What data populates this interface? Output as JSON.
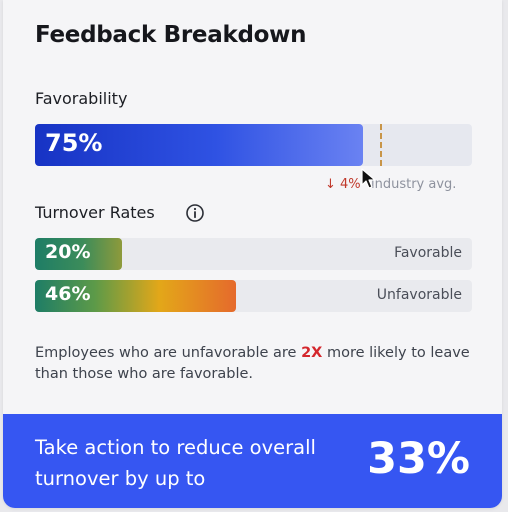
{
  "card": {
    "title": "Feedback Breakdown",
    "favorability": {
      "label": "Favorability",
      "value_text": "75%",
      "value_fraction": 0.75,
      "industry_delta": "↓ 4%",
      "industry_label": "industry avg.",
      "industry_avg_fraction": 0.79
    },
    "turnover": {
      "label": "Turnover Rates",
      "info_icon": "info-icon",
      "rows": [
        {
          "value_text": "20%",
          "fraction": 0.2,
          "tag": "Favorable"
        },
        {
          "value_text": "46%",
          "fraction": 0.46,
          "tag": "Unfavorable"
        }
      ]
    },
    "note": {
      "before": "Employees who are unfavorable are ",
      "highlight": "2X",
      "after": " more likely to leave than those who are favorable."
    },
    "banner": {
      "text": "Take action to reduce overall turnover by up to",
      "value": "33%"
    }
  },
  "colors": {
    "accent_blue": "#3656f2",
    "favorability_fill": "#2f52e3",
    "negative_red": "#d4262c",
    "industry_marker": "#c89548"
  },
  "icons": [
    "info-icon",
    "arrow-down-icon",
    "mouse-cursor-icon"
  ]
}
